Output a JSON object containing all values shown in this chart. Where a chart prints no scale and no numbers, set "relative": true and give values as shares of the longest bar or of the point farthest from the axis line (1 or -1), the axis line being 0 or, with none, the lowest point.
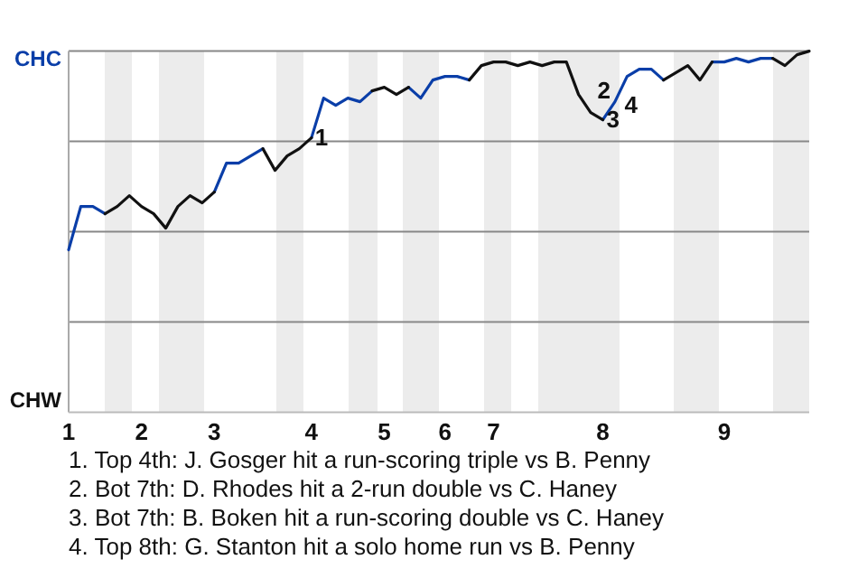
{
  "chart_data": {
    "type": "line",
    "relative": true,
    "categories": [
      "1",
      null,
      null,
      null,
      null,
      null,
      "2",
      null,
      null,
      null,
      null,
      null,
      "3",
      null,
      null,
      null,
      null,
      null,
      null,
      null,
      "4",
      null,
      null,
      null,
      null,
      null,
      "5",
      null,
      null,
      null,
      null,
      "6",
      null,
      null,
      null,
      "7",
      null,
      null,
      null,
      null,
      null,
      null,
      null,
      null,
      "8",
      null,
      null,
      null,
      null,
      null,
      null,
      null,
      null,
      null,
      "9",
      null,
      null,
      null,
      null,
      null,
      null,
      null
    ],
    "series": [
      {
        "color": "#0a3ea8",
        "values": [
          0.45,
          0.57,
          0.57,
          0.55,
          null,
          null,
          null,
          null,
          null,
          null,
          null,
          null,
          0.61,
          0.69,
          0.69,
          0.71,
          0.73,
          null,
          null,
          null,
          0.76,
          0.87,
          0.85,
          0.87,
          0.86,
          0.89,
          null,
          null,
          0.9,
          0.87,
          0.92,
          0.93,
          0.93,
          0.92,
          null,
          null,
          null,
          null,
          null,
          null,
          null,
          null,
          null,
          null,
          0.81,
          0.86,
          0.93,
          0.95,
          0.95,
          0.92,
          null,
          null,
          null,
          0.97,
          0.97,
          0.98,
          0.97,
          0.98,
          0.98,
          null,
          null,
          null
        ]
      },
      {
        "color": "#111111",
        "values": [
          null,
          null,
          null,
          0.55,
          0.57,
          0.6,
          0.57,
          0.55,
          0.51,
          0.57,
          0.6,
          0.58,
          0.61,
          null,
          null,
          null,
          0.73,
          0.67,
          0.71,
          0.73,
          0.76,
          null,
          null,
          null,
          null,
          0.89,
          0.9,
          0.88,
          0.9,
          null,
          null,
          null,
          null,
          0.92,
          0.96,
          0.97,
          0.97,
          0.96,
          0.97,
          0.96,
          0.97,
          0.97,
          0.88,
          0.83,
          0.81,
          null,
          null,
          null,
          null,
          0.92,
          0.94,
          0.96,
          0.92,
          0.97,
          null,
          null,
          null,
          null,
          0.98,
          0.96,
          0.99,
          1
        ]
      }
    ],
    "ref_lines": [
      {
        "axis": "y",
        "value": 0.25,
        "color": "#888888"
      },
      {
        "axis": "y",
        "value": 0.5,
        "color": "#888888"
      },
      {
        "axis": "y",
        "value": 0.75,
        "color": "#888888"
      },
      {
        "axis": "y",
        "value": 1,
        "color": "#888888"
      }
    ],
    "annotations": [
      "CHC",
      "CHW",
      {
        "text": "1",
        "x": "4",
        "y": 0.76
      },
      "2",
      {
        "text": "3",
        "x": "8",
        "y": 0.81
      },
      "4",
      "1. Top 4th: J. Gosger hit a run-scoring triple vs B. Penny",
      "2. Bot 7th: D. Rhodes hit a 2-run double vs C. Haney",
      "3. Bot 7th: B. Boken hit a run-scoring double vs C. Haney",
      "4. Top 8th: G. Stanton hit a solo home run vs B. Penny"
    ]
  }
}
